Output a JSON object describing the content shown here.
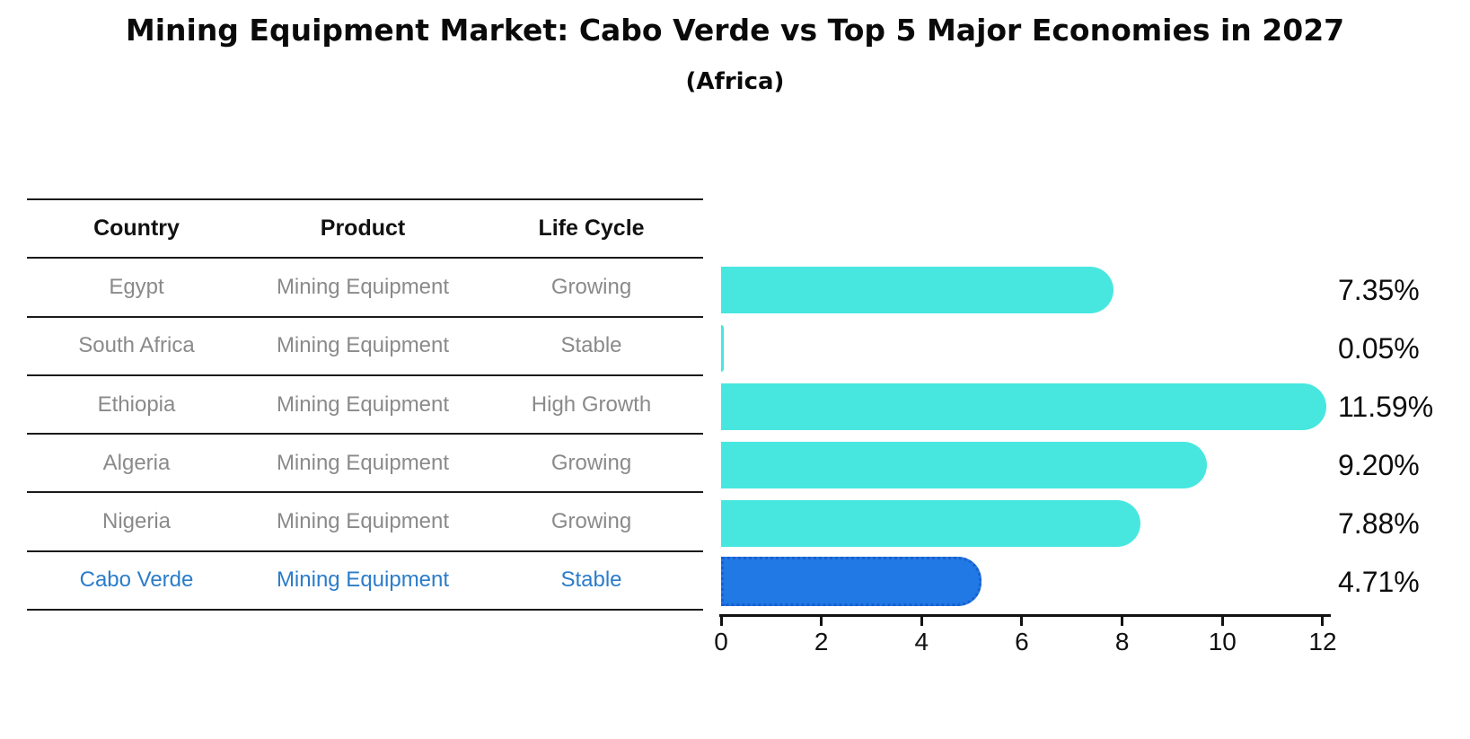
{
  "title": "Mining Equipment Market: Cabo Verde vs Top 5 Major Economies in 2027",
  "subtitle": "(Africa)",
  "table": {
    "headers": [
      "Country",
      "Product",
      "Life Cycle"
    ],
    "rows": [
      {
        "country": "Egypt",
        "product": "Mining Equipment",
        "life_cycle": "Growing",
        "highlight": false
      },
      {
        "country": "South Africa",
        "product": "Mining Equipment",
        "life_cycle": "Stable",
        "highlight": false
      },
      {
        "country": "Ethiopia",
        "product": "Mining Equipment",
        "life_cycle": "High Growth",
        "highlight": false
      },
      {
        "country": "Algeria",
        "product": "Mining Equipment",
        "life_cycle": "Growing",
        "highlight": false
      },
      {
        "country": "Nigeria",
        "product": "Mining Equipment",
        "life_cycle": "Growing",
        "highlight": false
      },
      {
        "country": "Cabo Verde",
        "product": "Mining Equipment",
        "life_cycle": "Stable",
        "highlight": true
      }
    ]
  },
  "chart_data": {
    "type": "bar",
    "orientation": "horizontal",
    "title": "Mining Equipment Market: Cabo Verde vs Top 5 Major Economies in 2027",
    "subtitle": "(Africa)",
    "categories": [
      "Egypt",
      "South Africa",
      "Ethiopia",
      "Algeria",
      "Nigeria",
      "Cabo Verde"
    ],
    "values": [
      7.35,
      0.05,
      11.59,
      9.2,
      7.88,
      4.71
    ],
    "value_labels": [
      "7.35%",
      "0.05%",
      "11.59%",
      "9.20%",
      "7.88%",
      "4.71%"
    ],
    "highlight_category": "Cabo Verde",
    "xlim": [
      0,
      12
    ],
    "x_ticks": [
      "0",
      "2",
      "4",
      "6",
      "8",
      "10",
      "12"
    ],
    "grid": false,
    "legend": false,
    "colors": {
      "default_bar": "#47e7e0",
      "highlight_bar": "#2079e4",
      "highlight_bar_edge": "#1a5fd0",
      "highlight_text": "#2b7cc9",
      "table_text": "#8a8a8a",
      "axis": "#111111"
    }
  }
}
